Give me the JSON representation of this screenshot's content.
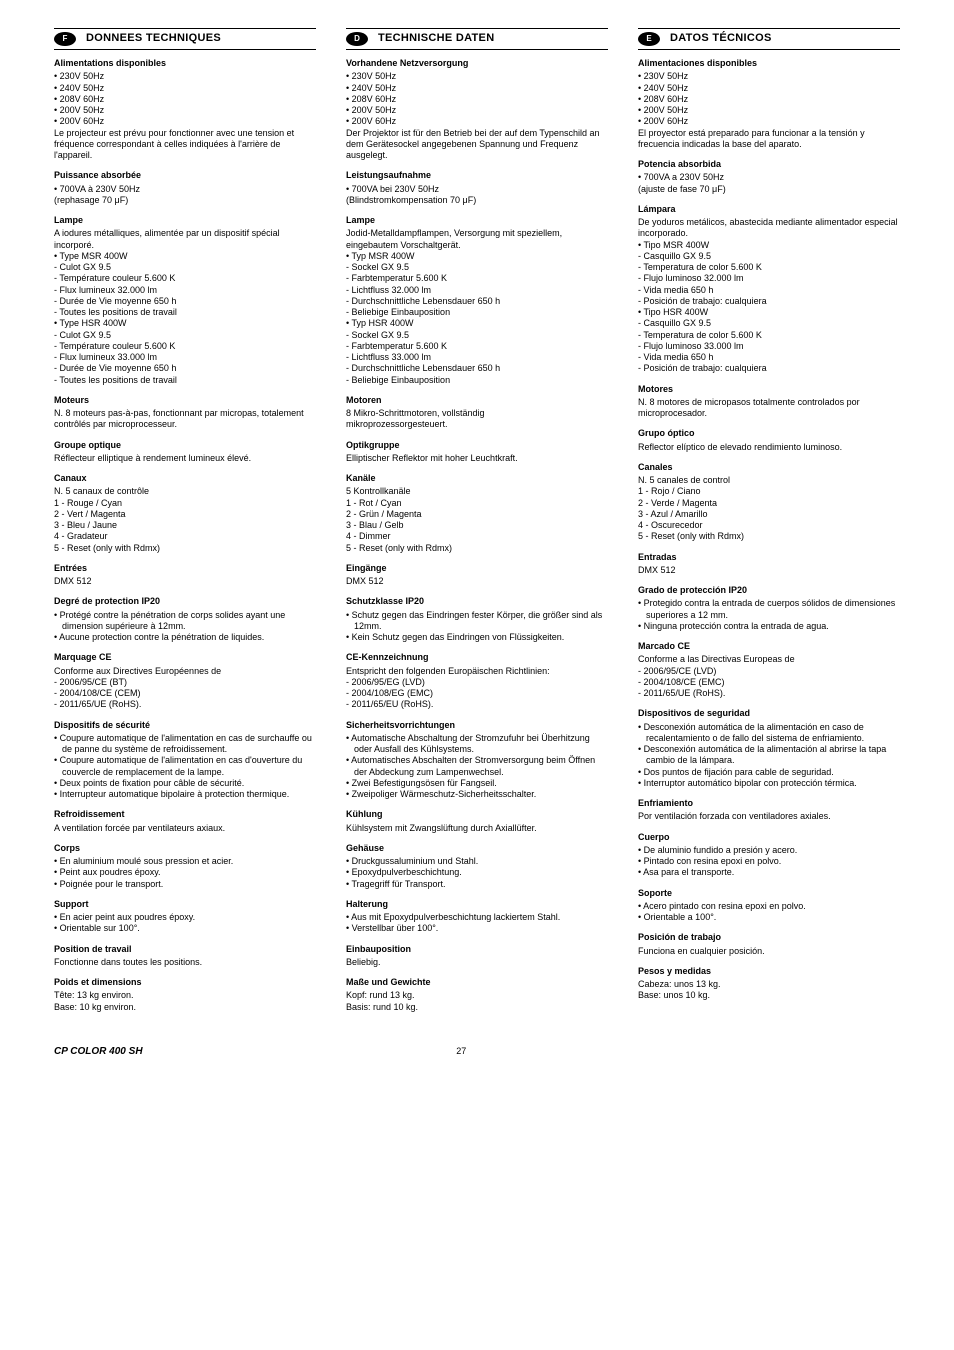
{
  "footer": {
    "product": "CP COLOR 400 SH",
    "page": "27"
  },
  "columns": [
    {
      "lang": "F",
      "title": "DONNEES TECHNIQUES",
      "sections": [
        {
          "h": "Alimentations disponibles",
          "body": "• 230V 50Hz\n• 240V 50Hz\n• 208V 60Hz\n• 200V 50Hz\n• 200V 60Hz\nLe projecteur est prévu pour fonctionner avec une tension et fréquence correspondant à celles indiquées à l'arrière de l'appareil."
        },
        {
          "h": "Puissance absorbée",
          "body": "• 700VA à 230V 50Hz\n  (rephasage 70 μF)"
        },
        {
          "h": "Lampe",
          "body": "A iodures métalliques, alimentée par un dispositif spécial incorporé.\n• Type MSR 400W\n- Culot GX 9.5\n- Température couleur 5.600 K\n- Flux lumineux 32.000 lm\n- Durée de Vie moyenne 650 h\n- Toutes les positions de travail\n• Type HSR 400W\n- Culot GX 9.5\n- Température couleur 5.600 K\n- Flux lumineux 33.000 lm\n- Durée de Vie moyenne 650 h\n- Toutes les positions de travail"
        },
        {
          "h": "Moteurs",
          "body": "N. 8 moteurs pas-à-pas, fonctionnant par micropas, totalement contrôlés par microprocesseur."
        },
        {
          "h": "Groupe optique",
          "body": "Réflecteur elliptique à rendement lumineux élevé."
        },
        {
          "h": "Canaux",
          "body": "N. 5 canaux de contrôle\n1 - Rouge / Cyan\n2 - Vert / Magenta\n3 - Bleu / Jaune\n4 - Gradateur\n5 - Reset (only with Rdmx)"
        },
        {
          "h": "Entrées",
          "body": "DMX 512"
        },
        {
          "h": "Degré de protection IP20",
          "bullets": [
            "Protégé contre la pénétration de corps solides ayant une dimension supérieure à 12mm.",
            "Aucune protection contre la pénétration de liquides."
          ]
        },
        {
          "h": "Marquage CE",
          "body": "Conforme aux Directives Européennes de\n- 2006/95/CE (BT)\n- 2004/108/CE (CEM)\n- 2011/65/UE (RoHS)."
        },
        {
          "h": "Dispositifs de sécurité",
          "bullets": [
            "Coupure automatique de l'alimentation en cas de surchauffe ou de panne du système de refroidissement.",
            "Coupure automatique de l'alimentation en cas d'ouverture du couvercle de remplacement de la lampe.",
            "Deux points de fixation pour câble de sécurité.",
            "Interrupteur automatique bipolaire à protection thermique."
          ]
        },
        {
          "h": "Refroidissement",
          "body": "A ventilation forcée par ventilateurs axiaux."
        },
        {
          "h": "Corps",
          "bullets": [
            "En aluminium moulé sous pression et acier.",
            "Peint aux poudres époxy.",
            "Poignée pour le transport."
          ]
        },
        {
          "h": "Support",
          "bullets": [
            "En acier peint aux poudres époxy.",
            "Orientable sur 100°."
          ]
        },
        {
          "h": "Position de travail",
          "body": "Fonctionne dans toutes les positions."
        },
        {
          "h": "Poids et dimensions",
          "body": "Tête: 13 kg environ.\nBase: 10 kg environ."
        }
      ]
    },
    {
      "lang": "D",
      "title": "TECHNISCHE DATEN",
      "sections": [
        {
          "h": "Vorhandene Netzversorgung",
          "body": "• 230V 50Hz\n• 240V 50Hz\n• 208V 60Hz\n• 200V 50Hz\n• 200V 60Hz\nDer Projektor ist für den Betrieb bei der auf dem Typenschild an dem Gerätesockel angegebenen Spannung und Frequenz ausgelegt."
        },
        {
          "h": "Leistungsaufnahme",
          "body": "• 700VA bei 230V 50Hz\n  (Blindstromkompensation 70 μF)"
        },
        {
          "h": "Lampe",
          "body": "Jodid-Metalldampflampen, Versorgung mit speziellem, eingebautem Vorschaltgerät.\n• Typ MSR 400W\n- Sockel GX 9.5\n- Farbtemperatur 5.600 K\n- Lichtfluss 32.000 lm\n- Durchschnittliche Lebensdauer 650 h\n- Beliebige Einbauposition\n• Typ HSR 400W\n- Sockel GX 9.5\n- Farbtemperatur 5.600 K\n- Lichtfluss 33.000 lm\n- Durchschnittliche Lebensdauer 650 h\n- Beliebige Einbauposition"
        },
        {
          "h": "Motoren",
          "body": "8 Mikro-Schrittmotoren, vollständig\nmikroprozessorgesteuert."
        },
        {
          "h": "Optikgruppe",
          "body": "Elliptischer Reflektor mit hoher Leuchtkraft."
        },
        {
          "h": "Kanäle",
          "body": "5 Kontrollkanäle\n1 - Rot / Cyan\n2 - Grün / Magenta\n3 - Blau / Gelb\n4 - Dimmer\n5 - Reset (only with Rdmx)"
        },
        {
          "h": "Eingänge",
          "body": "DMX 512"
        },
        {
          "h": "Schutzklasse IP20",
          "bullets": [
            "Schutz gegen das Eindringen fester Körper, die größer sind als 12mm.",
            "Kein Schutz gegen das Eindringen von Flüssigkeiten."
          ]
        },
        {
          "h": "CE-Kennzeichnung",
          "body": "Entspricht den folgenden Europäischen Richtlinien:\n- 2006/95/EG (LVD)\n- 2004/108/EG (EMC)\n- 2011/65/EU (RoHS)."
        },
        {
          "h": "Sicherheitsvorrichtungen",
          "bullets": [
            "Automatische Abschaltung der Stromzufuhr bei Überhitzung oder Ausfall des Kühlsystems.",
            "Automatisches Abschalten der Stromversorgung beim Öffnen der Abdeckung zum Lampenwechsel.",
            "Zwei Befestigungsösen für Fangseil.",
            "Zweipoliger Wärmeschutz-Sicherheitsschalter."
          ]
        },
        {
          "h": "Kühlung",
          "body": "Kühlsystem mit Zwangslüftung durch Axiallüfter."
        },
        {
          "h": "Gehäuse",
          "bullets": [
            "Druckgussaluminium und Stahl.",
            "Epoxydpulverbeschichtung.",
            "Tragegriff für Transport."
          ]
        },
        {
          "h": "Halterung",
          "bullets": [
            "Aus mit Epoxydpulverbeschichtung lackiertem Stahl.",
            "Verstellbar über 100°."
          ]
        },
        {
          "h": "Einbauposition",
          "body": "Beliebig."
        },
        {
          "h": "Maße und Gewichte",
          "body": "Kopf: rund 13 kg.\nBasis: rund 10 kg."
        }
      ]
    },
    {
      "lang": "E",
      "title": "DATOS TÉCNICOS",
      "sections": [
        {
          "h": "Alimentaciones disponibles",
          "body": "• 230V 50Hz\n• 240V 50Hz\n• 208V 60Hz\n• 200V 50Hz\n• 200V 60Hz\nEl proyector está preparado para funcionar a la tensión y frecuencia indicadas la base del aparato."
        },
        {
          "h": "Potencia absorbida",
          "body": "• 700VA a 230V 50Hz\n  (ajuste de fase 70 μF)"
        },
        {
          "h": "Lámpara",
          "body": "De yoduros metálicos, abastecida mediante alimentador especial incorporado.\n• Tipo MSR 400W\n- Casquillo GX 9.5\n- Temperatura de color 5.600 K\n- Flujo luminoso 32.000 lm\n- Vida media 650 h\n- Posición de trabajo: cualquiera\n• Tipo HSR 400W\n- Casquillo GX 9.5\n- Temperatura de color 5.600 K\n- Flujo luminoso 33.000 lm\n- Vida media 650 h\n- Posición de trabajo: cualquiera"
        },
        {
          "h": "Motores",
          "body": "N. 8 motores de micropasos totalmente controlados por microprocesador."
        },
        {
          "h": "Grupo óptico",
          "body": "Reflector elíptico de elevado rendimiento luminoso."
        },
        {
          "h": "Canales",
          "body": "N. 5 canales de control\n1 - Rojo / Ciano\n2 - Verde / Magenta\n3 - Azul / Amarillo\n4 - Oscurecedor\n5 - Reset (only with Rdmx)"
        },
        {
          "h": "Entradas",
          "body": "DMX 512"
        },
        {
          "h": "Grado de protección IP20",
          "bullets": [
            "Protegido contra la entrada de cuerpos sólidos de dimensiones superiores a 12 mm.",
            "Ninguna protección contra la entrada de agua."
          ]
        },
        {
          "h": "Marcado CE",
          "body": "Conforme a las Directivas Europeas de\n- 2006/95/CE (LVD)\n- 2004/108/CE (EMC)\n- 2011/65/UE (RoHS)."
        },
        {
          "h": "",
          "body": ""
        },
        {
          "h": "Dispositivos de seguridad",
          "bullets": [
            "Desconexión automática de la alimentación en caso de recalentamiento o de fallo del sistema de enfriamiento.",
            "Desconexión automática de la alimentación al abrirse la tapa cambio de la lámpara.",
            "Dos puntos de fijación para cable de seguridad.",
            "Interruptor automático bipolar con protección térmica."
          ]
        },
        {
          "h": "Enfriamiento",
          "body": "Por ventilación forzada con ventiladores axiales."
        },
        {
          "h": "Cuerpo",
          "bullets": [
            "De aluminio fundido a presión y acero.",
            "Pintado con resina epoxi en polvo.",
            "Asa para el transporte."
          ]
        },
        {
          "h": "Soporte",
          "bullets": [
            "Acero pintado con resina epoxi en polvo.",
            "Orientable a 100°."
          ]
        },
        {
          "h": "Posición de trabajo",
          "body": "Funciona en cualquier posición."
        },
        {
          "h": "Pesos y medidas",
          "body": "Cabeza: unos 13 kg.\nBase: unos 10 kg."
        }
      ]
    }
  ]
}
